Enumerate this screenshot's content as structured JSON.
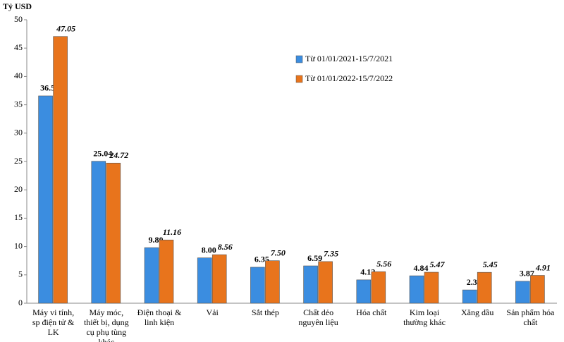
{
  "chart_data": {
    "type": "bar",
    "y_label": "Tỷ USD",
    "categories": [
      "Máy vi tính, sp điện tử & LK",
      "Máy móc, thiết bị, dụng cụ phụ tùng khác",
      "Điện thoại & linh kiện",
      "Vải",
      "Sắt thép",
      "Chất dẻo nguyên liệu",
      "Hóa chất",
      "Kim loại thường khác",
      "Xăng dầu",
      "Sản phẩm hóa chất"
    ],
    "series": [
      {
        "name": "Từ 01/01/2021-15/7/2021",
        "color": "#3b8de0",
        "values": [
          36.57,
          25.04,
          9.8,
          8,
          6.35,
          6.59,
          4.12,
          4.84,
          2.35,
          3.87
        ],
        "value_labels": [
          "36.57",
          "25.04",
          "9.80",
          "8.00",
          "6.35",
          "6.59",
          "4.12",
          "4.84",
          "2.35",
          "3.87"
        ]
      },
      {
        "name": "Từ 01/01/2022-15/7/2022",
        "color": "#e8741c",
        "values": [
          47.05,
          24.72,
          11.16,
          8.56,
          7.5,
          7.35,
          5.56,
          5.47,
          5.45,
          4.91
        ],
        "value_labels": [
          "47.05",
          "24.72",
          "11.16",
          "8.56",
          "7.50",
          "7.35",
          "5.56",
          "5.47",
          "5.45",
          "4.91"
        ]
      }
    ],
    "ylim": [
      0,
      50
    ],
    "yticks": [
      0,
      5,
      10,
      15,
      20,
      25,
      30,
      35,
      40,
      45,
      50
    ],
    "legend": "upper-center"
  }
}
